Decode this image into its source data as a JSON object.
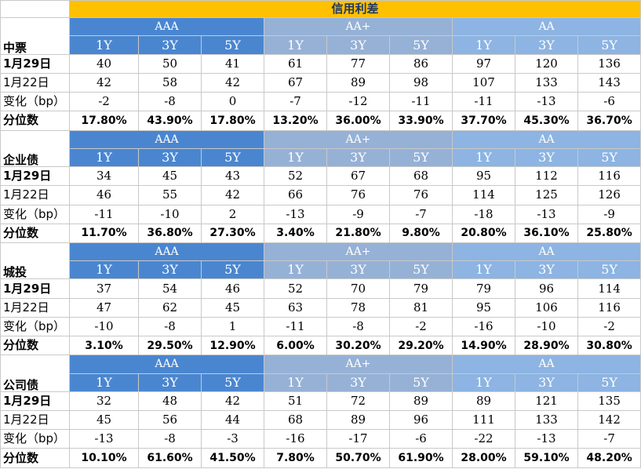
{
  "title": "信用利差",
  "grade_labels": [
    "AAA",
    "AA+",
    "AA"
  ],
  "tenors": [
    "1Y",
    "3Y",
    "5Y"
  ],
  "row_labels": [
    "1月29日",
    "1月22日",
    "变化（bp）",
    "分位数"
  ],
  "sections": [
    {
      "name": "中票",
      "rows": [
        [
          "40",
          "50",
          "41",
          "61",
          "77",
          "86",
          "97",
          "120",
          "136"
        ],
        [
          "42",
          "58",
          "42",
          "67",
          "89",
          "98",
          "107",
          "133",
          "143"
        ],
        [
          "-2",
          "-8",
          "0",
          "-7",
          "-12",
          "-11",
          "-11",
          "-13",
          "-6"
        ],
        [
          "17.80%",
          "43.90%",
          "17.80%",
          "13.20%",
          "36.00%",
          "33.90%",
          "37.70%",
          "45.30%",
          "36.70%"
        ]
      ]
    },
    {
      "name": "企业债",
      "rows": [
        [
          "34",
          "45",
          "43",
          "52",
          "67",
          "68",
          "95",
          "112",
          "116"
        ],
        [
          "46",
          "55",
          "42",
          "66",
          "76",
          "76",
          "114",
          "125",
          "126"
        ],
        [
          "-11",
          "-10",
          "2",
          "-13",
          "-9",
          "-7",
          "-18",
          "-13",
          "-9"
        ],
        [
          "11.70%",
          "36.80%",
          "27.30%",
          "3.40%",
          "21.80%",
          "9.80%",
          "20.80%",
          "36.10%",
          "25.80%"
        ]
      ]
    },
    {
      "name": "城投",
      "rows": [
        [
          "37",
          "54",
          "46",
          "52",
          "70",
          "79",
          "79",
          "96",
          "114"
        ],
        [
          "47",
          "62",
          "45",
          "63",
          "78",
          "81",
          "95",
          "106",
          "116"
        ],
        [
          "-10",
          "-8",
          "1",
          "-11",
          "-8",
          "-2",
          "-16",
          "-10",
          "-2"
        ],
        [
          "3.10%",
          "29.50%",
          "12.90%",
          "6.00%",
          "30.20%",
          "29.20%",
          "14.90%",
          "28.90%",
          "30.80%"
        ]
      ]
    },
    {
      "name": "公司债",
      "rows": [
        [
          "32",
          "48",
          "42",
          "51",
          "72",
          "89",
          "89",
          "121",
          "135"
        ],
        [
          "45",
          "56",
          "44",
          "68",
          "89",
          "96",
          "111",
          "133",
          "142"
        ],
        [
          "-13",
          "-8",
          "-3",
          "-16",
          "-17",
          "-6",
          "-22",
          "-13",
          "-7"
        ],
        [
          "10.10%",
          "61.60%",
          "41.50%",
          "7.80%",
          "50.70%",
          "61.90%",
          "28.00%",
          "59.10%",
          "48.20%"
        ]
      ]
    }
  ]
}
